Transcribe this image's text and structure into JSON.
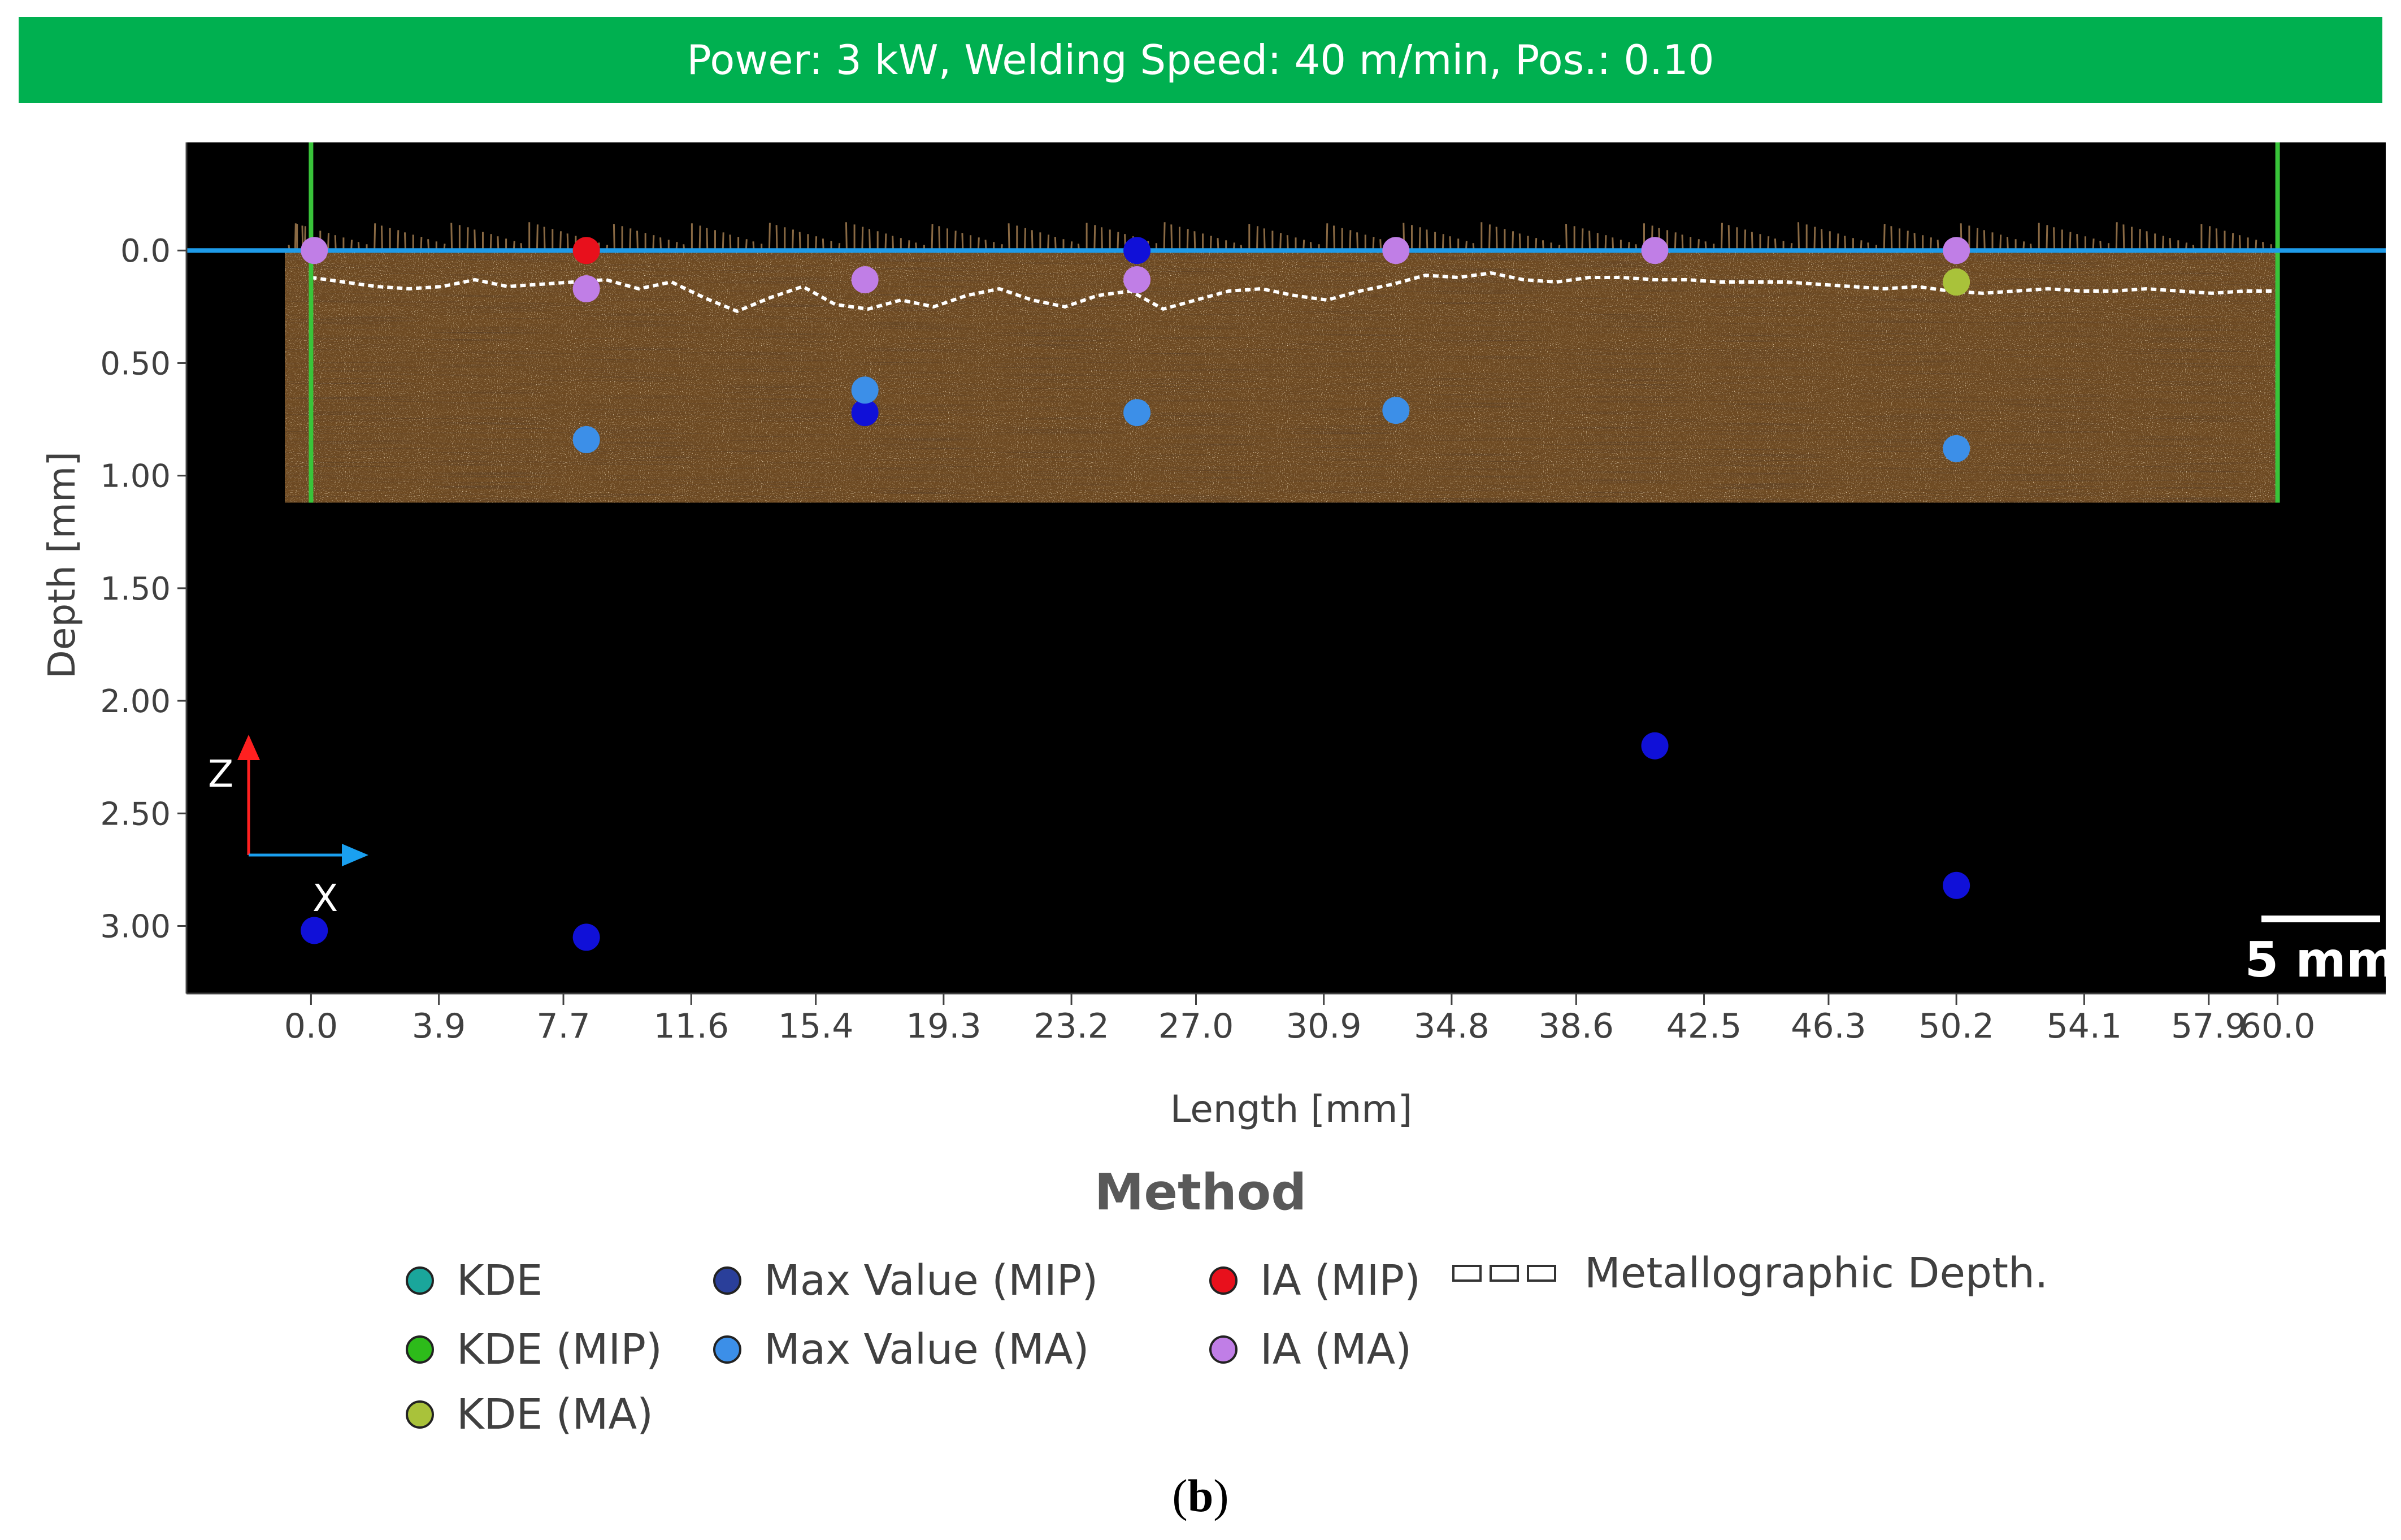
{
  "banner": {
    "title": "Power: 3 kW, Welding Speed: 40 m/min, Pos.: 0.10"
  },
  "chart_data": {
    "type": "scatter",
    "xlabel": "Length [mm]",
    "ylabel": "Depth [mm]",
    "xlim": [
      -3.8,
      63.3
    ],
    "ylim": [
      3.3,
      -0.48
    ],
    "x_ticks": [
      "0.0",
      "3.9",
      "7.7",
      "11.6",
      "15.4",
      "19.3",
      "23.2",
      "27.0",
      "30.9",
      "34.8",
      "38.6",
      "42.5",
      "46.3",
      "50.2",
      "54.1",
      "57.9",
      "60.0"
    ],
    "x_tick_values": [
      0.0,
      3.9,
      7.7,
      11.6,
      15.4,
      19.3,
      23.2,
      27.0,
      30.9,
      34.8,
      38.6,
      42.5,
      46.3,
      50.2,
      54.1,
      57.9,
      60.0
    ],
    "y_ticks": [
      "0.0",
      "0.50",
      "1.00",
      "1.50",
      "2.00",
      "2.50",
      "3.00"
    ],
    "y_tick_values": [
      0.0,
      0.5,
      1.0,
      1.5,
      2.0,
      2.5,
      3.0
    ],
    "surface_line": {
      "depth": 0.0,
      "color": "#1e9be8"
    },
    "bounds_lines": {
      "x": [
        0.0,
        60.0
      ],
      "color": "#39c43a"
    },
    "sample_region": {
      "x": [
        -0.8,
        60.0
      ],
      "depth": [
        0.0,
        1.12
      ]
    },
    "metallographic_depth": {
      "x": [
        0,
        1,
        2,
        3,
        4,
        5,
        6,
        7,
        8,
        9,
        10,
        11,
        12,
        13,
        14,
        15,
        16,
        17,
        18,
        19,
        20,
        21,
        22,
        23,
        24,
        25,
        26,
        27,
        28,
        29,
        30,
        31,
        32,
        33,
        34,
        35,
        36,
        37,
        38,
        39,
        40,
        41,
        42,
        43,
        44,
        45,
        46,
        47,
        48,
        49,
        50,
        51,
        52,
        53,
        54,
        55,
        56,
        57,
        58,
        59,
        60
      ],
      "depth": [
        0.12,
        0.14,
        0.16,
        0.17,
        0.16,
        0.13,
        0.16,
        0.15,
        0.14,
        0.13,
        0.17,
        0.14,
        0.21,
        0.27,
        0.21,
        0.16,
        0.24,
        0.26,
        0.22,
        0.25,
        0.2,
        0.17,
        0.22,
        0.25,
        0.2,
        0.18,
        0.26,
        0.22,
        0.18,
        0.17,
        0.2,
        0.22,
        0.18,
        0.15,
        0.11,
        0.12,
        0.1,
        0.13,
        0.14,
        0.12,
        0.12,
        0.13,
        0.13,
        0.14,
        0.14,
        0.14,
        0.15,
        0.16,
        0.17,
        0.16,
        0.18,
        0.19,
        0.18,
        0.17,
        0.18,
        0.18,
        0.17,
        0.18,
        0.19,
        0.18,
        0.18
      ]
    },
    "series": [
      {
        "name": "KDE",
        "color": "#1aa69b",
        "x": [],
        "y": []
      },
      {
        "name": "KDE (MIP)",
        "color": "#2dbb1a",
        "x": [],
        "y": []
      },
      {
        "name": "KDE (MA)",
        "color": "#a9c23a",
        "x": [
          50.2
        ],
        "y": [
          0.14
        ]
      },
      {
        "name": "Max Value (MIP)",
        "color": "#1010d8",
        "x": [
          0.1,
          8.4,
          16.9,
          25.2,
          41.0,
          50.2
        ],
        "y": [
          3.02,
          3.05,
          0.72,
          0.0,
          2.2,
          2.82
        ]
      },
      {
        "name": "Max Value (MA)",
        "color": "#3c8fe8",
        "x": [
          8.4,
          16.9,
          25.2,
          33.1,
          50.2
        ],
        "y": [
          0.84,
          0.62,
          0.72,
          0.71,
          0.88
        ]
      },
      {
        "name": "IA (MIP)",
        "color": "#e8101c",
        "x": [
          8.4
        ],
        "y": [
          0.0
        ]
      },
      {
        "name": "IA (MA)",
        "color": "#c07ee6",
        "x": [
          0.1,
          8.4,
          16.9,
          25.2,
          33.1,
          41.0,
          50.2
        ],
        "y": [
          0.0,
          0.17,
          0.13,
          0.13,
          0.0,
          0.0,
          0.0
        ]
      }
    ],
    "axis_glyph": {
      "z_label": "Z",
      "x_label": "X",
      "z_color": "#ff2020",
      "x_color": "#1aa0f0"
    },
    "scale_bar": "5 mm"
  },
  "legend": {
    "title": "Method",
    "items": [
      {
        "label": "KDE",
        "color": "#1aa69b"
      },
      {
        "label": "KDE (MIP)",
        "color": "#2dbb1a"
      },
      {
        "label": "KDE (MA)",
        "color": "#a9c23a"
      },
      {
        "label": "Max Value (MIP)",
        "color": "#2a3f9a"
      },
      {
        "label": "Max Value (MA)",
        "color": "#3c8fe8"
      },
      {
        "label": "IA (MIP)",
        "color": "#e8101c"
      },
      {
        "label": "IA (MA)",
        "color": "#c07ee6"
      },
      {
        "label": "Metallographic Depth."
      }
    ]
  },
  "caption": {
    "label": "b"
  }
}
